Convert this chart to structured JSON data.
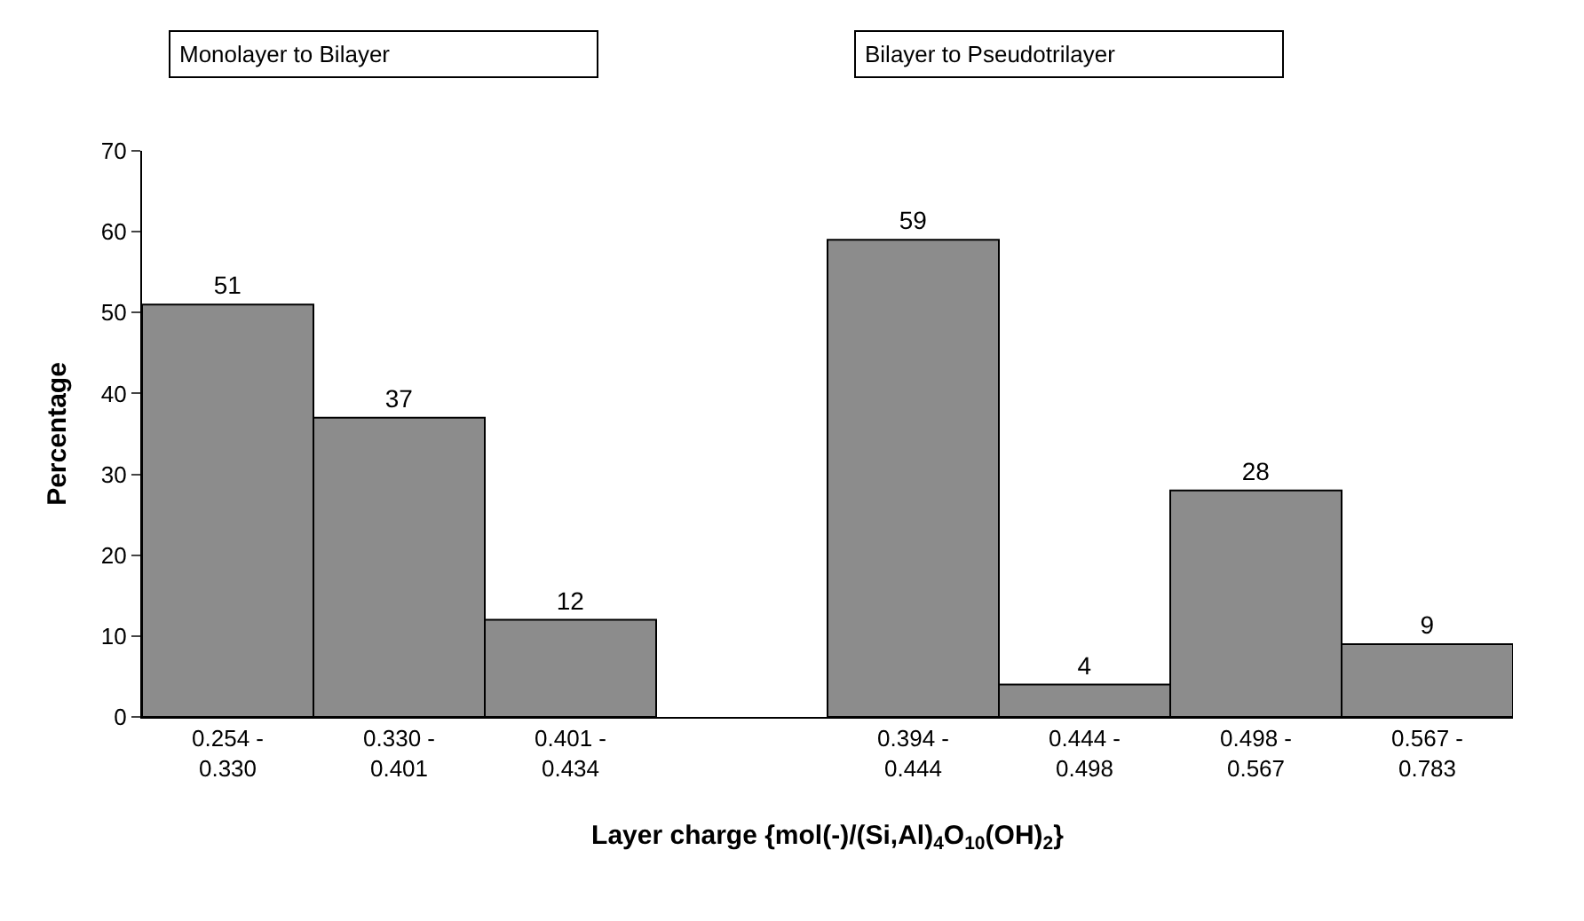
{
  "chart_data": {
    "type": "bar",
    "categories": [
      "0.254 -\n0.330",
      "0.330 -\n0.401",
      "0.401 -\n0.434",
      null,
      "0.394 -\n0.444",
      "0.444 -\n0.498",
      "0.498 -\n0.567",
      "0.567 -\n0.783"
    ],
    "values": [
      51,
      37,
      12,
      null,
      59,
      4,
      28,
      9
    ],
    "color": "#8c8c8c",
    "xlabel": "Layer charge {mol(-)/(Si,Al)$_{4}$O$_{10}$(OH)$_{2}$}",
    "ylabel": "Percentage",
    "ylim": [
      0,
      70
    ],
    "yticks": [
      0,
      10,
      20,
      30,
      40,
      50,
      60,
      70
    ],
    "data_labels": true,
    "annotations": [
      "Monolayer to Bilayer",
      "Bilayer to Pseudotrilayer"
    ]
  }
}
